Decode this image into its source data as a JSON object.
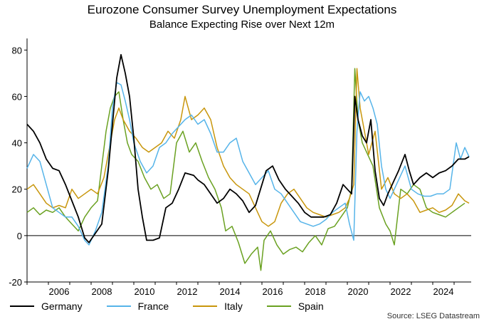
{
  "chart_data": {
    "type": "line",
    "title": "Eurozone Consumer Survey Unemployment Expectations",
    "subtitle": "Balance Expecting Rise over Next 12m",
    "xlabel": "",
    "ylabel": "",
    "xlim": [
      2005.0,
      2025.8
    ],
    "ylim": [
      -20,
      85
    ],
    "yticks": [
      -20,
      0,
      20,
      40,
      60,
      80
    ],
    "xticks": [
      2006,
      2008,
      2010,
      2012,
      2014,
      2016,
      2018,
      2020,
      2022,
      2024
    ],
    "grid": false,
    "legend_position": "bottom-left",
    "source": "Source: LSEG Datastream",
    "series": [
      {
        "name": "Germany",
        "color": "#000000",
        "x": [
          2005.0,
          2005.3,
          2005.6,
          2005.9,
          2006.2,
          2006.5,
          2006.8,
          2007.1,
          2007.4,
          2007.7,
          2007.9,
          2008.2,
          2008.5,
          2008.8,
          2009.0,
          2009.2,
          2009.4,
          2009.6,
          2009.8,
          2010.0,
          2010.2,
          2010.4,
          2010.6,
          2010.9,
          2011.2,
          2011.5,
          2011.8,
          2012.1,
          2012.4,
          2012.8,
          2013.0,
          2013.3,
          2013.6,
          2013.9,
          2014.2,
          2014.5,
          2014.8,
          2015.1,
          2015.4,
          2015.7,
          2016.0,
          2016.2,
          2016.5,
          2016.8,
          2017.1,
          2017.4,
          2017.7,
          2018.0,
          2018.3,
          2018.6,
          2018.9,
          2019.2,
          2019.5,
          2019.8,
          2020.0,
          2020.2,
          2020.35,
          2020.5,
          2020.7,
          2020.9,
          2021.1,
          2021.3,
          2021.5,
          2021.7,
          2021.9,
          2022.1,
          2022.4,
          2022.7,
          2022.9,
          2023.1,
          2023.4,
          2023.7,
          2024.0,
          2024.3,
          2024.6,
          2024.9,
          2025.2,
          2025.5,
          2025.7
        ],
        "values": [
          48,
          45,
          40,
          33,
          29,
          28,
          22,
          15,
          8,
          -1,
          -3,
          1,
          5,
          28,
          48,
          68,
          78,
          70,
          60,
          42,
          20,
          8,
          -2,
          -2,
          -1,
          12,
          14,
          20,
          27,
          26,
          24,
          22,
          18,
          14,
          16,
          20,
          18,
          15,
          10,
          13,
          22,
          28,
          30,
          24,
          20,
          17,
          14,
          10,
          8,
          8,
          8,
          9,
          14,
          22,
          20,
          18,
          60,
          50,
          43,
          40,
          50,
          28,
          16,
          13,
          18,
          22,
          28,
          35,
          28,
          22,
          25,
          27,
          25,
          27,
          28,
          30,
          33,
          33,
          34
        ]
      },
      {
        "name": "France",
        "color": "#56b4e9",
        "x": [
          2005.0,
          2005.3,
          2005.6,
          2005.9,
          2006.2,
          2006.5,
          2006.8,
          2007.1,
          2007.4,
          2007.7,
          2007.9,
          2008.2,
          2008.5,
          2008.8,
          2009.0,
          2009.2,
          2009.4,
          2009.6,
          2009.8,
          2010.0,
          2010.3,
          2010.6,
          2010.9,
          2011.2,
          2011.5,
          2011.8,
          2012.1,
          2012.4,
          2012.7,
          2013.0,
          2013.3,
          2013.6,
          2013.9,
          2014.2,
          2014.5,
          2014.8,
          2015.1,
          2015.4,
          2015.7,
          2016.0,
          2016.3,
          2016.6,
          2016.9,
          2017.2,
          2017.5,
          2017.8,
          2018.1,
          2018.4,
          2018.7,
          2019.0,
          2019.3,
          2019.6,
          2019.9,
          2020.1,
          2020.3,
          2020.45,
          2020.6,
          2020.8,
          2021.0,
          2021.2,
          2021.4,
          2021.6,
          2021.8,
          2022.0,
          2022.2,
          2022.4,
          2022.7,
          2023.0,
          2023.3,
          2023.6,
          2023.9,
          2024.2,
          2024.5,
          2024.8,
          2024.95,
          2025.1,
          2025.3,
          2025.5,
          2025.7
        ],
        "values": [
          29,
          35,
          32,
          22,
          12,
          10,
          8,
          8,
          4,
          -2,
          -4,
          2,
          10,
          30,
          55,
          66,
          65,
          58,
          50,
          40,
          32,
          27,
          30,
          38,
          40,
          44,
          47,
          50,
          52,
          48,
          50,
          44,
          36,
          36,
          40,
          42,
          32,
          27,
          22,
          25,
          28,
          20,
          18,
          14,
          10,
          6,
          5,
          4,
          5,
          7,
          10,
          12,
          14,
          5,
          -2,
          45,
          62,
          58,
          60,
          55,
          48,
          30,
          20,
          16,
          20,
          24,
          30,
          20,
          18,
          17,
          17,
          18,
          18,
          20,
          30,
          40,
          33,
          38,
          34
        ]
      },
      {
        "name": "Italy",
        "color": "#c8960c",
        "x": [
          2005.0,
          2005.3,
          2005.6,
          2005.9,
          2006.2,
          2006.5,
          2006.8,
          2007.1,
          2007.4,
          2007.7,
          2008.0,
          2008.3,
          2008.6,
          2008.9,
          2009.1,
          2009.3,
          2009.5,
          2009.8,
          2010.1,
          2010.4,
          2010.7,
          2011.0,
          2011.3,
          2011.6,
          2011.9,
          2012.2,
          2012.4,
          2012.7,
          2013.0,
          2013.3,
          2013.6,
          2013.9,
          2014.2,
          2014.5,
          2014.8,
          2015.1,
          2015.4,
          2015.7,
          2016.0,
          2016.3,
          2016.6,
          2016.9,
          2017.2,
          2017.5,
          2017.8,
          2018.1,
          2018.4,
          2018.7,
          2019.0,
          2019.3,
          2019.6,
          2019.9,
          2020.1,
          2020.3,
          2020.45,
          2020.6,
          2020.8,
          2021.0,
          2021.3,
          2021.6,
          2021.9,
          2022.2,
          2022.5,
          2022.8,
          2023.1,
          2023.4,
          2023.7,
          2024.0,
          2024.3,
          2024.6,
          2024.9,
          2025.2,
          2025.5,
          2025.7
        ],
        "values": [
          20,
          22,
          18,
          14,
          12,
          13,
          12,
          20,
          16,
          18,
          20,
          18,
          25,
          40,
          50,
          55,
          50,
          45,
          42,
          38,
          36,
          38,
          40,
          45,
          42,
          50,
          60,
          50,
          52,
          55,
          50,
          38,
          30,
          25,
          22,
          20,
          18,
          12,
          6,
          4,
          6,
          14,
          18,
          20,
          16,
          12,
          10,
          9,
          8,
          9,
          10,
          12,
          16,
          22,
          72,
          55,
          45,
          35,
          45,
          20,
          25,
          18,
          16,
          18,
          15,
          10,
          11,
          12,
          10,
          11,
          13,
          18,
          15,
          14
        ]
      },
      {
        "name": "Spain",
        "color": "#6aa121",
        "x": [
          2005.0,
          2005.3,
          2005.6,
          2005.9,
          2006.2,
          2006.5,
          2006.8,
          2007.1,
          2007.4,
          2007.7,
          2008.0,
          2008.3,
          2008.5,
          2008.7,
          2008.9,
          2009.1,
          2009.3,
          2009.5,
          2009.7,
          2009.9,
          2010.2,
          2010.5,
          2010.8,
          2011.1,
          2011.4,
          2011.7,
          2012.0,
          2012.3,
          2012.6,
          2012.9,
          2013.2,
          2013.5,
          2013.8,
          2014.1,
          2014.3,
          2014.6,
          2014.9,
          2015.2,
          2015.5,
          2015.8,
          2015.95,
          2016.1,
          2016.4,
          2016.7,
          2017.0,
          2017.3,
          2017.6,
          2017.9,
          2018.2,
          2018.5,
          2018.8,
          2019.1,
          2019.4,
          2019.7,
          2020.0,
          2020.2,
          2020.35,
          2020.5,
          2020.7,
          2020.9,
          2021.2,
          2021.5,
          2021.8,
          2022.0,
          2022.2,
          2022.5,
          2022.8,
          2023.1,
          2023.4,
          2023.7,
          2024.0,
          2024.3,
          2024.6,
          2024.9,
          2025.2,
          2025.5
        ],
        "values": [
          10,
          12,
          9,
          11,
          10,
          12,
          8,
          5,
          2,
          8,
          12,
          15,
          30,
          45,
          55,
          60,
          62,
          50,
          40,
          35,
          32,
          25,
          20,
          22,
          16,
          18,
          40,
          45,
          36,
          40,
          32,
          25,
          20,
          12,
          2,
          4,
          -3,
          -12,
          -8,
          -5,
          -15,
          -2,
          2,
          -4,
          -8,
          -6,
          -5,
          -7,
          -3,
          0,
          -4,
          3,
          4,
          8,
          12,
          20,
          72,
          50,
          40,
          36,
          30,
          12,
          5,
          2,
          -4,
          20,
          18,
          22,
          20,
          12,
          10,
          9,
          8,
          10,
          12,
          14
        ]
      }
    ]
  }
}
